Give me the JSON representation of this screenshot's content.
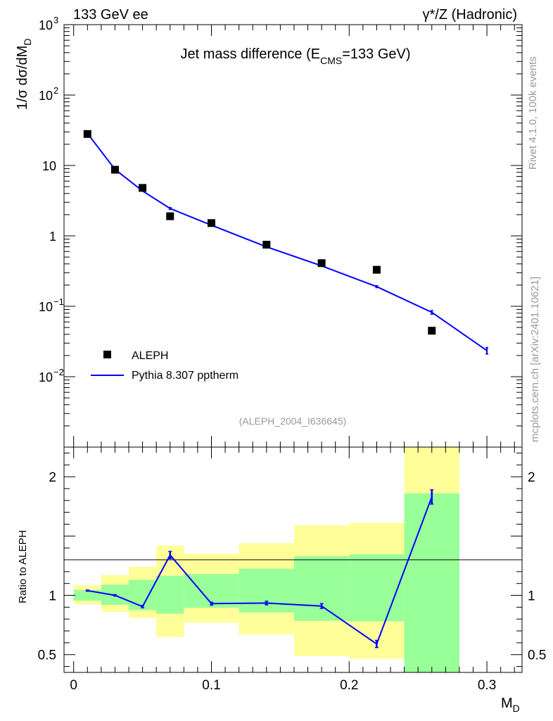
{
  "header": {
    "left": "133 GeV ee",
    "right_sym": "γ*/Z",
    "right_text": "(Hadronic)"
  },
  "side": {
    "rivet": "Rivet 4.1.0,  100k events",
    "mcplots": "mcplots.cern.ch [arXiv:2401.10621]"
  },
  "colors": {
    "mc_line": "#0000ff",
    "band_inner": "#99ff99",
    "band_outer": "#ffff99",
    "data_marker": "#000000",
    "analysis_label": "#999999"
  },
  "chart_data": [
    {
      "type": "line",
      "panel": "main",
      "title_parts": {
        "pre": "Jet mass difference (E",
        "sub": "CMS",
        "post": "=133 GeV)"
      },
      "ylabel": "1/σ  dσ/dM",
      "ylabel_sub": "D",
      "yscale": "log",
      "ylim": [
        0.001,
        1000
      ],
      "xlim": [
        -0.007,
        0.3255
      ],
      "y_ticks": [
        {
          "v": 1000,
          "base": "10",
          "exp": "3"
        },
        {
          "v": 100,
          "base": "10",
          "exp": "2"
        },
        {
          "v": 10,
          "base": "10",
          "exp": ""
        },
        {
          "v": 1,
          "base": "1",
          "exp": ""
        },
        {
          "v": 0.1,
          "base": "10",
          "exp": "−1"
        },
        {
          "v": 0.01,
          "base": "10",
          "exp": "−2"
        }
      ],
      "analysis_label": "(ALEPH_2004_I636645)",
      "legend": {
        "data": "ALEPH",
        "mc": "Pythia 8.307 pptherm",
        "position": "bottom-left"
      },
      "series": [
        {
          "name": "ALEPH",
          "style": "markers",
          "x": [
            0.01,
            0.03,
            0.05,
            0.07,
            0.1,
            0.14,
            0.18,
            0.22,
            0.26
          ],
          "y": [
            28,
            8.7,
            4.8,
            1.9,
            1.52,
            0.75,
            0.41,
            0.33,
            0.045
          ]
        },
        {
          "name": "Pythia 8.307 pptherm",
          "style": "line",
          "x": [
            0.01,
            0.03,
            0.05,
            0.07,
            0.1,
            0.14,
            0.18,
            0.22,
            0.26,
            0.3
          ],
          "y": [
            28.5,
            8.8,
            4.35,
            2.45,
            1.42,
            0.7,
            0.375,
            0.19,
            0.082,
            0.0235
          ],
          "err": [
            0,
            0,
            0,
            0.08,
            0,
            0,
            0,
            0.006,
            0.005,
            0.0025
          ]
        }
      ]
    },
    {
      "type": "line",
      "panel": "ratio",
      "ylabel": "Ratio to ALEPH",
      "xlabel": "M",
      "xlabel_sub": "D",
      "ylim": [
        0.35,
        2.25
      ],
      "xlim": [
        -0.007,
        0.3255
      ],
      "y_ticks": [
        0.5,
        1,
        2
      ],
      "x_ticks": [
        {
          "v": 0,
          "label": "0"
        },
        {
          "v": 0.1,
          "label": "0.1"
        },
        {
          "v": 0.2,
          "label": "0.2"
        },
        {
          "v": 0.3,
          "label": "0.3"
        }
      ],
      "bands": [
        {
          "x0": 0.0,
          "x1": 0.02,
          "outer": [
            0.925,
            1.085
          ],
          "inner": [
            0.955,
            1.045
          ]
        },
        {
          "x0": 0.02,
          "x1": 0.04,
          "outer": [
            0.86,
            1.17
          ],
          "inner": [
            0.92,
            1.09
          ]
        },
        {
          "x0": 0.04,
          "x1": 0.06,
          "outer": [
            0.81,
            1.24
          ],
          "inner": [
            0.875,
            1.13
          ]
        },
        {
          "x0": 0.06,
          "x1": 0.08,
          "outer": [
            0.65,
            1.42
          ],
          "inner": [
            0.845,
            1.165
          ]
        },
        {
          "x0": 0.08,
          "x1": 0.12,
          "outer": [
            0.77,
            1.35
          ],
          "inner": [
            0.895,
            1.18
          ]
        },
        {
          "x0": 0.12,
          "x1": 0.16,
          "outer": [
            0.67,
            1.44
          ],
          "inner": [
            0.855,
            1.225
          ]
        },
        {
          "x0": 0.16,
          "x1": 0.2,
          "outer": [
            0.49,
            1.59
          ],
          "inner": [
            0.785,
            1.33
          ]
        },
        {
          "x0": 0.2,
          "x1": 0.24,
          "outer": [
            0.465,
            1.61
          ],
          "inner": [
            0.78,
            1.345
          ]
        },
        {
          "x0": 0.24,
          "x1": 0.28,
          "outer": [
            0.35,
            2.25
          ],
          "inner": [
            0.35,
            1.86
          ]
        }
      ],
      "series": [
        {
          "name": "Pythia 8.307 pptherm / ALEPH",
          "x": [
            0.01,
            0.03,
            0.05,
            0.07,
            0.1,
            0.14,
            0.18,
            0.22,
            0.26
          ],
          "y": [
            1.04,
            1.0,
            0.905,
            1.34,
            0.93,
            0.935,
            0.91,
            0.59,
            1.83
          ],
          "err": [
            0.005,
            0.006,
            0.01,
            0.03,
            0.012,
            0.015,
            0.02,
            0.03,
            0.06
          ]
        }
      ]
    }
  ]
}
